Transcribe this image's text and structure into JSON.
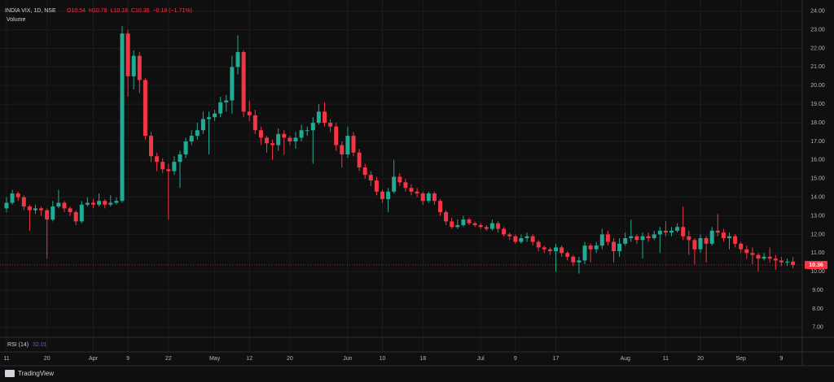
{
  "header": {
    "symbol": "INDIA VIX, 1D, NSE",
    "legend_values": [
      "O10.54",
      "H10.78",
      "L10.18",
      "C10.36",
      "−0.18 (−1.71%)"
    ],
    "volume_label": "Volume"
  },
  "rsi": {
    "label": "RSI (14)",
    "value": "32.01"
  },
  "brand": "TradingView",
  "chart_data": {
    "type": "candlestick",
    "categories": [
      "11",
      null,
      null,
      null,
      null,
      null,
      null,
      "20",
      null,
      null,
      null,
      null,
      null,
      null,
      null,
      "Apr",
      null,
      null,
      null,
      null,
      null,
      "9",
      null,
      null,
      null,
      null,
      null,
      null,
      "22",
      null,
      null,
      null,
      null,
      null,
      null,
      null,
      "May",
      null,
      null,
      null,
      null,
      null,
      "12",
      null,
      null,
      null,
      null,
      null,
      null,
      "20",
      null,
      null,
      null,
      null,
      null,
      null,
      null,
      null,
      null,
      "Jun",
      null,
      null,
      null,
      null,
      null,
      "10",
      null,
      null,
      null,
      null,
      null,
      null,
      "18",
      null,
      null,
      null,
      null,
      null,
      null,
      null,
      null,
      null,
      "Jul",
      null,
      null,
      null,
      null,
      null,
      "9",
      null,
      null,
      null,
      null,
      null,
      null,
      "17",
      null,
      null,
      null,
      null,
      null,
      null,
      null,
      null,
      null,
      null,
      null,
      "Aug",
      null,
      null,
      null,
      null,
      null,
      null,
      "11",
      null,
      null,
      null,
      null,
      null,
      "20",
      null,
      null,
      null,
      null,
      null,
      null,
      "Sep",
      null,
      null,
      null,
      null,
      null,
      null,
      "9",
      null,
      null
    ],
    "open": [
      13.4,
      13.7,
      14.2,
      14.0,
      13.5,
      13.3,
      13.4,
      13.3,
      12.8,
      13.5,
      13.7,
      13.4,
      13.2,
      12.7,
      13.6,
      13.7,
      13.6,
      13.8,
      13.6,
      13.7,
      13.8,
      22.8,
      20.5,
      21.6,
      20.3,
      17.3,
      16.2,
      15.9,
      15.5,
      15.4,
      15.9,
      16.3,
      17.0,
      17.3,
      17.6,
      18.2,
      18.3,
      18.5,
      19.1,
      19.2,
      21.0,
      21.8,
      18.6,
      18.4,
      17.6,
      17.2,
      16.9,
      16.8,
      17.4,
      17.2,
      17.0,
      17.2,
      17.6,
      17.6,
      18.0,
      18.6,
      18.0,
      17.8,
      16.8,
      16.3,
      17.3,
      16.4,
      15.6,
      15.2,
      14.9,
      14.3,
      13.9,
      14.3,
      15.1,
      14.8,
      14.5,
      14.3,
      14.2,
      13.8,
      14.2,
      13.8,
      13.2,
      12.7,
      12.4,
      12.5,
      12.8,
      12.6,
      12.5,
      12.4,
      12.3,
      12.6,
      12.3,
      12.0,
      11.9,
      11.6,
      11.8,
      11.9,
      11.6,
      11.3,
      11.2,
      11.1,
      11.3,
      11.0,
      10.8,
      10.5,
      10.6,
      11.4,
      11.2,
      11.4,
      12.0,
      11.6,
      11.1,
      11.5,
      11.8,
      11.9,
      11.7,
      11.9,
      11.8,
      12.0,
      12.2,
      12.1,
      12.2,
      12.4,
      11.9,
      11.7,
      11.2,
      11.8,
      11.5,
      12.2,
      12.1,
      11.8,
      11.9,
      11.5,
      11.2,
      11.0,
      10.9,
      10.7,
      10.8,
      10.7,
      10.6,
      10.5,
      10.54
    ],
    "high": [
      14.0,
      14.4,
      14.3,
      14.1,
      13.6,
      13.6,
      13.5,
      13.4,
      13.8,
      14.4,
      13.8,
      13.5,
      13.3,
      13.8,
      14.0,
      13.9,
      14.2,
      13.9,
      14.1,
      14.0,
      23.2,
      23.0,
      21.9,
      21.8,
      20.4,
      17.5,
      16.4,
      16.1,
      15.8,
      16.2,
      16.5,
      17.2,
      17.6,
      18.0,
      18.6,
      18.6,
      18.7,
      19.4,
      19.5,
      21.6,
      22.7,
      21.9,
      19.2,
      18.7,
      17.8,
      17.3,
      17.1,
      17.7,
      17.6,
      17.3,
      17.5,
      17.9,
      17.8,
      18.3,
      19.0,
      19.1,
      18.2,
      18.0,
      17.0,
      17.8,
      17.5,
      16.6,
      15.8,
      15.4,
      15.1,
      14.4,
      14.5,
      16.0,
      15.3,
      15.0,
      14.7,
      14.5,
      14.3,
      14.3,
      14.3,
      13.9,
      13.3,
      12.9,
      12.8,
      13.0,
      12.9,
      12.7,
      12.6,
      12.5,
      12.8,
      12.7,
      12.4,
      12.1,
      12.0,
      12.0,
      12.1,
      12.0,
      11.7,
      11.4,
      11.3,
      11.5,
      11.4,
      11.1,
      10.9,
      10.8,
      11.6,
      11.5,
      11.6,
      12.3,
      12.2,
      11.8,
      11.8,
      12.1,
      12.8,
      12.0,
      12.1,
      12.1,
      12.2,
      12.4,
      12.7,
      12.4,
      12.6,
      13.5,
      12.2,
      11.8,
      12.0,
      11.9,
      12.4,
      13.1,
      12.3,
      12.1,
      12.0,
      11.6,
      11.4,
      11.3,
      11.0,
      11.0,
      11.3,
      10.9,
      10.8,
      10.7,
      10.78
    ],
    "low": [
      13.2,
      13.6,
      13.8,
      13.3,
      12.2,
      13.1,
      13.0,
      10.7,
      12.7,
      13.4,
      13.2,
      13.0,
      12.5,
      12.6,
      13.5,
      13.4,
      13.5,
      13.4,
      13.5,
      13.6,
      13.7,
      19.4,
      19.8,
      19.6,
      17.1,
      15.9,
      15.4,
      15.3,
      12.8,
      15.2,
      14.5,
      16.1,
      16.8,
      17.1,
      17.4,
      16.3,
      18.1,
      18.3,
      18.6,
      18.5,
      20.6,
      18.3,
      18.1,
      17.4,
      16.8,
      16.4,
      16.0,
      16.5,
      16.3,
      16.8,
      16.6,
      17.0,
      17.3,
      15.8,
      17.9,
      17.8,
      17.5,
      16.5,
      15.6,
      16.1,
      16.2,
      15.4,
      15.0,
      14.6,
      14.1,
      13.7,
      13.2,
      14.2,
      14.6,
      14.3,
      14.1,
      14.0,
      13.6,
      13.7,
      13.6,
      13.0,
      12.5,
      12.3,
      12.3,
      12.4,
      12.5,
      12.4,
      12.3,
      12.2,
      12.2,
      12.1,
      11.9,
      11.7,
      11.5,
      11.5,
      11.6,
      11.4,
      11.1,
      11.0,
      10.9,
      10.0,
      10.8,
      10.6,
      10.3,
      9.9,
      10.4,
      10.5,
      11.0,
      11.2,
      11.4,
      10.5,
      10.8,
      11.4,
      11.6,
      11.5,
      10.7,
      11.6,
      11.7,
      11.0,
      11.9,
      11.9,
      12.1,
      11.7,
      10.9,
      10.4,
      11.0,
      10.5,
      11.4,
      11.9,
      11.6,
      11.2,
      11.3,
      11.0,
      10.7,
      10.4,
      10.0,
      10.6,
      10.5,
      10.1,
      10.3,
      10.3,
      10.18
    ],
    "close": [
      13.7,
      14.2,
      14.0,
      13.5,
      13.3,
      13.4,
      13.3,
      12.8,
      13.5,
      13.7,
      13.4,
      13.2,
      12.7,
      13.6,
      13.7,
      13.6,
      13.8,
      13.6,
      13.7,
      13.8,
      22.8,
      20.5,
      21.6,
      20.3,
      17.3,
      16.2,
      15.9,
      15.5,
      15.4,
      15.9,
      16.3,
      17.0,
      17.3,
      17.6,
      18.2,
      18.3,
      18.5,
      19.1,
      19.2,
      21.0,
      21.8,
      18.6,
      18.4,
      17.6,
      17.2,
      16.9,
      16.8,
      17.4,
      17.2,
      17.0,
      17.2,
      17.6,
      17.6,
      18.0,
      18.6,
      18.0,
      17.8,
      16.8,
      16.3,
      17.3,
      16.4,
      15.6,
      15.2,
      14.9,
      14.3,
      13.9,
      14.3,
      15.1,
      14.8,
      14.5,
      14.3,
      14.2,
      13.8,
      14.2,
      13.8,
      13.2,
      12.7,
      12.4,
      12.5,
      12.8,
      12.6,
      12.5,
      12.4,
      12.3,
      12.6,
      12.3,
      12.0,
      11.9,
      11.6,
      11.8,
      11.9,
      11.6,
      11.3,
      11.2,
      11.1,
      11.3,
      11.0,
      10.8,
      10.5,
      10.6,
      11.4,
      11.2,
      11.4,
      12.0,
      11.6,
      11.1,
      11.5,
      11.8,
      11.9,
      11.7,
      11.9,
      11.8,
      12.0,
      12.2,
      12.1,
      12.2,
      12.4,
      11.9,
      11.7,
      11.2,
      11.8,
      11.5,
      12.2,
      12.1,
      11.8,
      11.9,
      11.5,
      11.2,
      11.0,
      10.9,
      10.7,
      10.8,
      10.7,
      10.6,
      10.5,
      10.54,
      10.36
    ],
    "up_color": "#22ab94",
    "down_color": "#f23645",
    "last_price": 10.36,
    "ylim": [
      6.47,
      24.6
    ],
    "yticks": [
      {
        "value": 7,
        "label": "7.00"
      },
      {
        "value": 8,
        "label": "8.00"
      },
      {
        "value": 9,
        "label": "9.00"
      },
      {
        "value": 10,
        "label": "10.00"
      },
      {
        "value": 11,
        "label": "11.00"
      },
      {
        "value": 12,
        "label": "12.00"
      },
      {
        "value": 13,
        "label": "13.00"
      },
      {
        "value": 14,
        "label": "14.00"
      },
      {
        "value": 15,
        "label": "15.00"
      },
      {
        "value": 16,
        "label": "16.00"
      },
      {
        "value": 17,
        "label": "17.00"
      },
      {
        "value": 18,
        "label": "18.00"
      },
      {
        "value": 19,
        "label": "19.00"
      },
      {
        "value": 20,
        "label": "20.00"
      },
      {
        "value": 21,
        "label": "21.00"
      },
      {
        "value": 22,
        "label": "22.00"
      },
      {
        "value": 23,
        "label": "23.00"
      },
      {
        "value": 24,
        "label": "24.00"
      }
    ],
    "grid": true
  }
}
